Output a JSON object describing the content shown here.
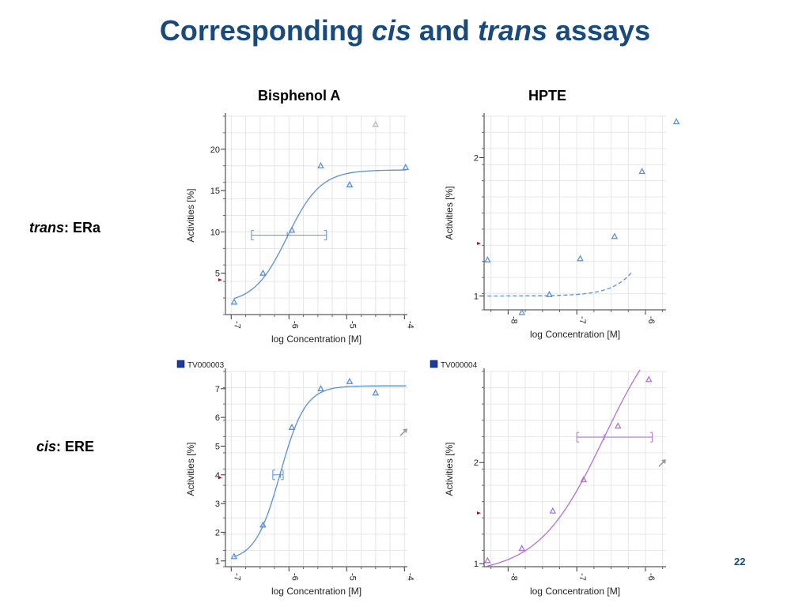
{
  "slide": {
    "title_parts": [
      "Corresponding ",
      "cis",
      " and ",
      "trans",
      " assays"
    ],
    "col_headings": [
      "Bisphenol A",
      "HPTE"
    ],
    "row_labels": [
      {
        "italic": "trans",
        "rest": ": ERa"
      },
      {
        "italic": "cis",
        "rest": ": ERE"
      }
    ],
    "page_number": "22"
  },
  "colors": {
    "title": "#1a4a7a",
    "series_blue": "#5b8fd6",
    "series_purple": "#b070d8",
    "grid": "#e6e6e6",
    "marker_red": "#a01818",
    "legend_box": "#1a3aa0"
  },
  "chart_data": [
    {
      "id": "bpa-trans",
      "type": "scatter",
      "xlabel": "log Concentration [M]",
      "ylabel": "Activities [%]",
      "xlim": [
        -7.1,
        -3.95
      ],
      "ylim": [
        0,
        24
      ],
      "x_ticks": [
        -7,
        -6,
        -5,
        -4
      ],
      "y_ticks": [
        5,
        10,
        15,
        20
      ],
      "x_tick_labels": [
        "-7",
        "-6",
        "-5",
        "-4"
      ],
      "y_tick_labels": [
        "5",
        "10",
        "15",
        "20"
      ],
      "grid": true,
      "legend": "",
      "series": [
        {
          "color": "#5b8fd6",
          "points": [
            [
              -6.95,
              1.5
            ],
            [
              -6.45,
              5.0
            ],
            [
              -5.95,
              10.2
            ],
            [
              -5.45,
              18.0
            ],
            [
              -4.95,
              15.7
            ],
            [
              -4.5,
              23.0
            ],
            [
              -3.98,
              17.8
            ]
          ],
          "excluded_points": [
            5
          ],
          "fit": {
            "bottom": 1.3,
            "top": 17.5,
            "ec50": -6.03,
            "hill": 1.5
          },
          "ec50_ci": [
            -6.65,
            -5.35
          ],
          "ec50_ci_y": 9.6
        }
      ],
      "marker_y": 4.2
    },
    {
      "id": "hpte-trans",
      "type": "scatter",
      "xlabel": "log Concentration [M]",
      "ylabel": "Activities [%]",
      "xlim": [
        -8.35,
        -5.7
      ],
      "ylim": [
        0.9,
        2.3
      ],
      "x_ticks": [
        -8,
        -7,
        -6
      ],
      "y_ticks": [
        1,
        2
      ],
      "x_tick_labels": [
        "-8",
        "-7",
        "-6"
      ],
      "y_tick_labels": [
        "1",
        "2"
      ],
      "grid": true,
      "legend": "",
      "series": [
        {
          "color": "#5b8fd6",
          "dashed": true,
          "points": [
            [
              -8.3,
              1.26
            ],
            [
              -7.8,
              0.88
            ],
            [
              -7.4,
              1.01
            ],
            [
              -6.95,
              1.27
            ],
            [
              -6.45,
              1.43
            ],
            [
              -6.05,
              1.9
            ],
            [
              -5.55,
              2.26
            ]
          ],
          "fit": {
            "bottom": 1.0,
            "top": 12.0,
            "ec50": -5.0,
            "hill": 1.5
          },
          "fit_range": [
            -8.3,
            -6.2
          ]
        }
      ],
      "marker_y": 1.38
    },
    {
      "id": "bpa-cis",
      "type": "scatter",
      "xlabel": "log Concentration [M]",
      "ylabel": "Activities [%]",
      "xlim": [
        -7.1,
        -3.95
      ],
      "ylim": [
        0.8,
        7.6
      ],
      "x_ticks": [
        -7,
        -6,
        -5,
        -4
      ],
      "y_ticks": [
        1,
        2,
        3,
        4,
        5,
        6,
        7
      ],
      "x_tick_labels": [
        "-7",
        "-6",
        "-5",
        "-4"
      ],
      "y_tick_labels": [
        "1",
        "2",
        "3",
        "4",
        "5",
        "6",
        "7"
      ],
      "grid": true,
      "legend": "TV000003",
      "series": [
        {
          "color": "#5b8fd6",
          "points": [
            [
              -6.95,
              1.15
            ],
            [
              -6.45,
              2.25
            ],
            [
              -5.95,
              5.65
            ],
            [
              -5.45,
              7.0
            ],
            [
              -4.95,
              7.25
            ],
            [
              -4.5,
              6.85
            ]
          ],
          "fit": {
            "bottom": 1.0,
            "top": 7.1,
            "ec50": -6.15,
            "hill": 2.0
          },
          "ec50_ci": [
            -6.28,
            -6.1
          ],
          "ec50_ci_y": 4.0
        }
      ],
      "marker_y": 3.9,
      "arrow_y": 5.5
    },
    {
      "id": "hpte-cis",
      "type": "scatter",
      "xlabel": "log Concentration [M]",
      "ylabel": "Activities [%]",
      "xlim": [
        -8.35,
        -5.7
      ],
      "ylim": [
        0.97,
        2.9
      ],
      "x_ticks": [
        -8,
        -7,
        -6
      ],
      "y_ticks": [
        1,
        2
      ],
      "x_tick_labels": [
        "-8",
        "-7",
        "-6"
      ],
      "y_tick_labels": [
        "1",
        "2"
      ],
      "grid": true,
      "legend": "TV000004",
      "series": [
        {
          "color": "#b070d8",
          "points": [
            [
              -8.3,
              1.03
            ],
            [
              -7.8,
              1.15
            ],
            [
              -7.35,
              1.52
            ],
            [
              -6.9,
              1.83
            ],
            [
              -6.4,
              2.36
            ],
            [
              -5.95,
              2.82
            ]
          ],
          "fit": {
            "bottom": 0.9,
            "top": 3.6,
            "ec50": -6.6,
            "hill": 0.9
          },
          "ec50_ci": [
            -7.0,
            -5.9
          ],
          "ec50_ci_y": 2.25
        }
      ],
      "marker_y": 1.5,
      "arrow_y": 2.0
    }
  ]
}
